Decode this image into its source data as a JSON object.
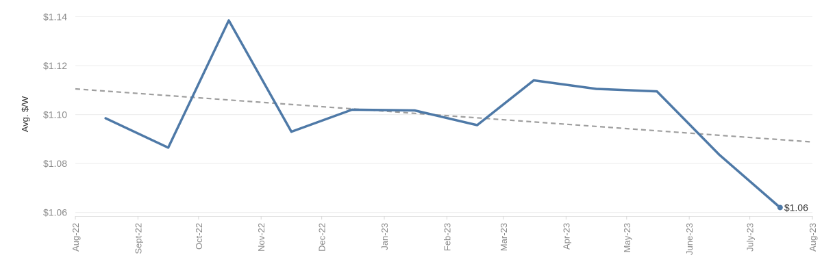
{
  "chart_data": {
    "type": "line",
    "ylabel": "Avg. $/W",
    "xlabel": "",
    "x_tick_labels": [
      "Aug-22",
      "Sept-22",
      "Oct-22",
      "Nov-22",
      "Dec-22",
      "Jan-23",
      "Feb-23",
      "Mar-23",
      "Apr-23",
      "May-23",
      "June-23",
      "July-23",
      "Aug-23"
    ],
    "y_tick_labels": [
      "$1.06",
      "$1.08",
      "$1.10",
      "$1.12",
      "$1.14"
    ],
    "y_ticks": [
      1.06,
      1.08,
      1.1,
      1.12,
      1.14
    ],
    "ylim": [
      1.0585,
      1.1435
    ],
    "x_range": [
      "2022-08-01",
      "2023-08-01"
    ],
    "grid": "horizontal",
    "colors": {
      "line": "#4e79a7",
      "trend": "#9e9e9e",
      "grid": "#ececec"
    },
    "series": [
      {
        "x": [
          "2022-08-16",
          "2022-09-16",
          "2022-10-16",
          "2022-11-16",
          "2022-12-16",
          "2023-01-16",
          "2023-02-16",
          "2023-03-16",
          "2023-04-16",
          "2023-05-16",
          "2023-06-16",
          "2023-07-16"
        ],
        "values": [
          1.0985,
          1.0865,
          1.1385,
          1.093,
          1.102,
          1.1017,
          1.0957,
          1.114,
          1.1105,
          1.1095,
          1.0835,
          1.062
        ],
        "end_label": "$1.06"
      }
    ],
    "trendline": {
      "x": [
        "2022-08-01",
        "2023-08-01"
      ],
      "values": [
        1.1105,
        1.0888
      ]
    }
  }
}
